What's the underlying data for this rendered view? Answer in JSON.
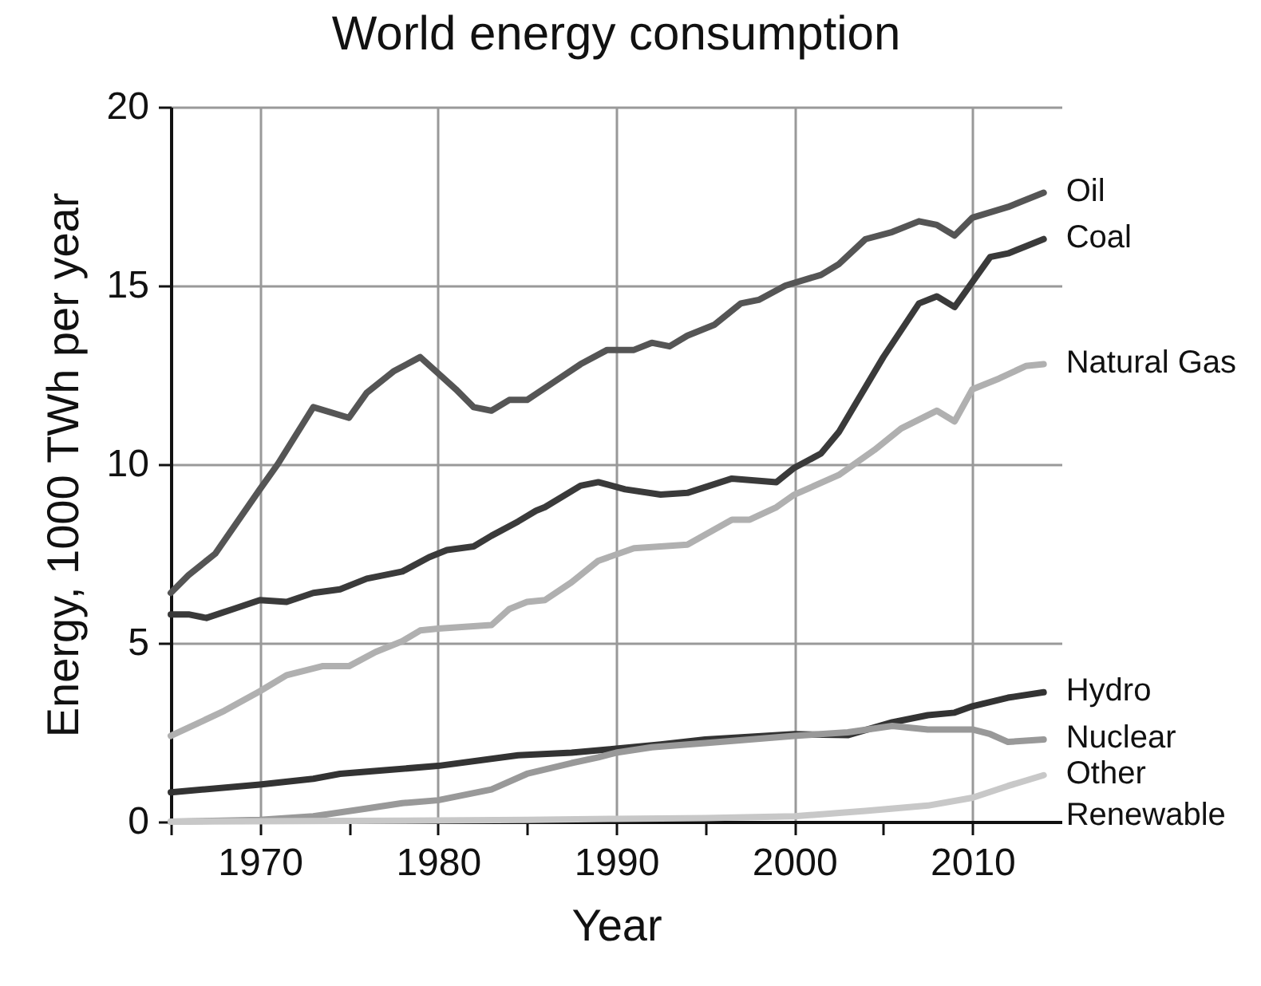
{
  "chart_data": {
    "type": "line",
    "title": "World energy consumption",
    "xlabel": "Year",
    "ylabel": "Energy, 1000 TWh per year",
    "xlim": [
      1965,
      2015
    ],
    "xticks": [
      {
        "value": 1965,
        "label": null
      },
      1970,
      {
        "value": 1975,
        "label": null
      },
      1980,
      {
        "value": 1985,
        "label": null
      },
      1990,
      {
        "value": 1995,
        "label": null
      },
      2000,
      {
        "value": 2005,
        "label": null
      },
      2010
    ],
    "ylim": [
      0,
      20
    ],
    "yticks": [
      0,
      5,
      10,
      15,
      20
    ],
    "grid": true,
    "legend": false,
    "line_style": "solid",
    "marker": "none",
    "series": [
      {
        "name": "Oil",
        "color": "#555555",
        "x": [
          1965,
          1966,
          1967.5,
          1970,
          1971,
          1973,
          1975,
          1976,
          1977.5,
          1979,
          1981,
          1982,
          1983,
          1984,
          1985,
          1986.5,
          1988,
          1989.5,
          1991,
          1992,
          1993,
          1994,
          1995.5,
          1997,
          1998,
          1999.5,
          2001.5,
          2002.5,
          2004,
          2005.5,
          2007,
          2008,
          2009,
          2010,
          2012,
          2014
        ],
        "values": [
          6.4,
          6.9,
          7.5,
          9.3,
          10.0,
          11.6,
          11.3,
          12.0,
          12.6,
          13.0,
          12.1,
          11.6,
          11.5,
          11.8,
          11.8,
          12.3,
          12.8,
          13.2,
          13.2,
          13.4,
          13.3,
          13.6,
          13.9,
          14.5,
          14.6,
          15.0,
          15.3,
          15.6,
          16.3,
          16.5,
          16.8,
          16.7,
          16.4,
          16.9,
          17.2,
          17.6
        ]
      },
      {
        "name": "Coal",
        "color": "#3a3a3a",
        "x": [
          1965,
          1966,
          1967,
          1968.5,
          1970,
          1971.5,
          1973,
          1974.5,
          1976,
          1978,
          1979.5,
          1980.5,
          1982,
          1983,
          1984.5,
          1985.5,
          1986,
          1988,
          1989,
          1990.5,
          1992.5,
          1994,
          1996.5,
          1999,
          2000,
          2001.5,
          2002.5,
          2005,
          2007,
          2008,
          2009,
          2011,
          2012,
          2013,
          2014
        ],
        "values": [
          5.8,
          5.8,
          5.7,
          5.95,
          6.2,
          6.15,
          6.4,
          6.5,
          6.8,
          7.0,
          7.4,
          7.6,
          7.7,
          8.0,
          8.4,
          8.7,
          8.8,
          9.4,
          9.5,
          9.3,
          9.15,
          9.2,
          9.6,
          9.5,
          9.9,
          10.3,
          10.9,
          13.0,
          14.5,
          14.7,
          14.4,
          15.8,
          15.9,
          16.1,
          16.3
        ]
      },
      {
        "name": "Natural Gas",
        "color": "#b0b0b0",
        "x": [
          1965,
          1966.5,
          1968,
          1970,
          1971.5,
          1973.5,
          1975,
          1976.5,
          1978,
          1979,
          1980,
          1983,
          1984,
          1985,
          1986,
          1987.5,
          1989,
          1991,
          1994,
          1996.5,
          1997.5,
          1999,
          2000,
          2002.5,
          2004.5,
          2006,
          2008,
          2009,
          2010,
          2011.5,
          2013,
          2014
        ],
        "values": [
          2.4,
          2.75,
          3.1,
          3.65,
          4.1,
          4.35,
          4.35,
          4.75,
          5.05,
          5.35,
          5.4,
          5.5,
          5.95,
          6.15,
          6.2,
          6.7,
          7.3,
          7.65,
          7.75,
          8.45,
          8.45,
          8.8,
          9.15,
          9.7,
          10.4,
          11.0,
          11.5,
          11.2,
          12.1,
          12.4,
          12.75,
          12.8
        ]
      },
      {
        "name": "Hydro",
        "color": "#333333",
        "x": [
          1965,
          1970,
          1973,
          1974.5,
          1977,
          1980,
          1984.5,
          1987.5,
          1990,
          1992.5,
          1995,
          2000,
          2003,
          2005.5,
          2007.5,
          2009,
          2010,
          2012,
          2014
        ],
        "values": [
          0.82,
          1.04,
          1.2,
          1.34,
          1.44,
          1.56,
          1.86,
          1.93,
          2.04,
          2.16,
          2.3,
          2.45,
          2.42,
          2.78,
          2.98,
          3.05,
          3.23,
          3.47,
          3.62
        ]
      },
      {
        "name": "Nuclear",
        "color": "#999999",
        "x": [
          1965,
          1970,
          1973,
          1976,
          1978,
          1980,
          1983,
          1985,
          1987.5,
          1989,
          1990,
          1992,
          1995,
          2000,
          2003,
          2005.5,
          2007.5,
          2010,
          2011,
          2012,
          2014
        ],
        "values": [
          0.0,
          0.05,
          0.15,
          0.37,
          0.52,
          0.6,
          0.9,
          1.34,
          1.64,
          1.8,
          1.93,
          2.08,
          2.2,
          2.4,
          2.5,
          2.68,
          2.58,
          2.58,
          2.45,
          2.23,
          2.3
        ]
      },
      {
        "name": "Other Renewable",
        "color": "#c8c8c8",
        "x": [
          1965,
          1975,
          1985,
          1990,
          1995,
          2000,
          2004,
          2007.5,
          2010,
          2012,
          2014
        ],
        "values": [
          0.0,
          0.02,
          0.05,
          0.08,
          0.1,
          0.15,
          0.3,
          0.45,
          0.67,
          1.0,
          1.3
        ]
      }
    ]
  }
}
